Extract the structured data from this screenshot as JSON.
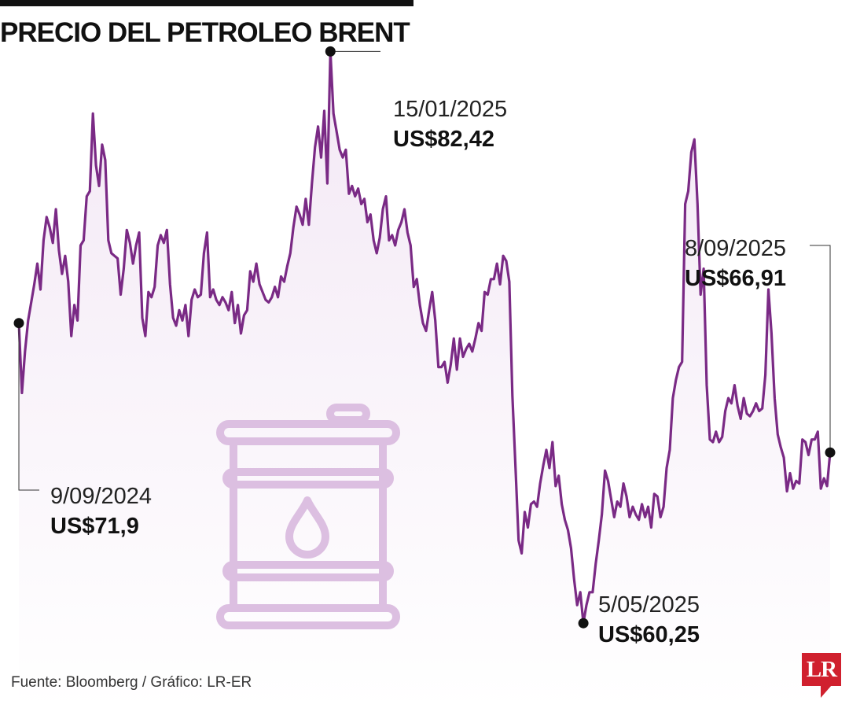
{
  "header": {
    "title": "PRECIO DEL PETROLEO BRENT"
  },
  "footer": {
    "source": "Fuente: Bloomberg / Gráfico: LR-ER"
  },
  "logo": {
    "text": "LR",
    "color": "#d0202e"
  },
  "icon": {
    "name": "oil-barrel-icon",
    "color": "#dcbfe1"
  },
  "colors": {
    "line": "#7a2a85",
    "area_top": "#f3e8f5",
    "marker": "#111111"
  },
  "chart_data": {
    "type": "area",
    "title": "PRECIO DEL PETROLEO BRENT",
    "xlabel": "",
    "ylabel": "",
    "x_start": "2024-09-09",
    "x_end": "2025-09-08",
    "ylim": [
      57,
      84
    ],
    "grid": false,
    "legend": "none",
    "series": [
      {
        "values": [
          71.9,
          69.2,
          70.8,
          72.0,
          72.7,
          73.4,
          74.2,
          73.2,
          75.1,
          76.0,
          75.6,
          75.0,
          76.3,
          74.7,
          73.8,
          74.5,
          73.5,
          71.4,
          72.6,
          72.0,
          74.9,
          75.1,
          76.8,
          77.0,
          80.0,
          78.0,
          77.2,
          78.8,
          78.2,
          75.1,
          74.6,
          74.5,
          74.4,
          73.0,
          74.0,
          75.5,
          75.0,
          74.2,
          74.9,
          75.4,
          72.1,
          71.4,
          73.1,
          72.9,
          73.3,
          74.9,
          75.3,
          75.0,
          75.5,
          73.4,
          72.1,
          71.8,
          72.4,
          72.0,
          72.6,
          71.4,
          72.8,
          73.2,
          72.9,
          73.0,
          74.6,
          75.4,
          72.9,
          73.2,
          72.8,
          72.6,
          72.9,
          72.7,
          72.4,
          73.1,
          71.9,
          72.6,
          71.5,
          72.2,
          72.4,
          73.9,
          73.5,
          74.2,
          73.4,
          73.1,
          72.8,
          72.7,
          72.9,
          73.3,
          72.9,
          73.7,
          73.5,
          74.1,
          74.6,
          75.6,
          76.4,
          76.1,
          75.7,
          76.7,
          75.7,
          77.3,
          78.7,
          79.5,
          78.3,
          80.1,
          77.3,
          82.4,
          80.0,
          79.3,
          78.6,
          78.3,
          78.6,
          76.9,
          77.2,
          76.8,
          77.1,
          76.5,
          76.7,
          75.8,
          76.1,
          75.1,
          74.6,
          75.2,
          76.3,
          76.8,
          75.1,
          75.3,
          74.9,
          75.5,
          75.8,
          76.3,
          75.4,
          74.9,
          73.3,
          73.6,
          72.6,
          71.9,
          71.6,
          72.4,
          73.1,
          72.0,
          70.2,
          70.2,
          70.4,
          69.6,
          70.3,
          71.3,
          70.1,
          71.3,
          70.6,
          70.9,
          71.1,
          70.8,
          71.3,
          71.9,
          71.6,
          73.1,
          73.0,
          73.6,
          73.6,
          74.2,
          73.4,
          74.5,
          74.3,
          73.5,
          69.1,
          66.3,
          63.5,
          63.0,
          64.6,
          64.0,
          64.9,
          65.0,
          64.8,
          65.7,
          66.4,
          67.0,
          66.3,
          67.3,
          65.6,
          66.0,
          64.9,
          64.3,
          63.9,
          63.2,
          62.0,
          61.0,
          61.5,
          60.3,
          61.0,
          61.5,
          61.5,
          62.6,
          63.5,
          64.5,
          66.2,
          65.8,
          65.1,
          64.4,
          65.0,
          64.8,
          65.7,
          65.2,
          64.4,
          64.8,
          64.5,
          64.3,
          64.9,
          64.4,
          64.8,
          64.0,
          65.3,
          65.2,
          64.4,
          64.8,
          66.3,
          67.0,
          69.0,
          69.7,
          70.2,
          70.4,
          76.5,
          77.0,
          78.5,
          79.0,
          76.5,
          73.0,
          74.0,
          69.5,
          67.4,
          67.3,
          67.7,
          67.3,
          67.5,
          68.5,
          69.0,
          68.8,
          69.5,
          68.7,
          68.2,
          69.0,
          68.4,
          68.3,
          68.5,
          68.8,
          68.5,
          68.6,
          69.9,
          73.2,
          71.5,
          69.0,
          67.6,
          67.1,
          66.7,
          65.4,
          66.1,
          65.5,
          65.8,
          65.7,
          67.4,
          67.3,
          66.8,
          67.4,
          67.4,
          67.7,
          65.5,
          65.9,
          65.6,
          66.9
        ],
        "color": "#7a2a85"
      }
    ],
    "annotations": [
      {
        "date": "9/09/2024",
        "value": 71.9,
        "value_label": "US$71,9"
      },
      {
        "date": "15/01/2025",
        "value": 82.42,
        "value_label": "US$82,42"
      },
      {
        "date": "5/05/2025",
        "value": 60.25,
        "value_label": "US$60,25"
      },
      {
        "date": "8/09/2025",
        "value": 66.91,
        "value_label": "US$66,91"
      }
    ]
  }
}
